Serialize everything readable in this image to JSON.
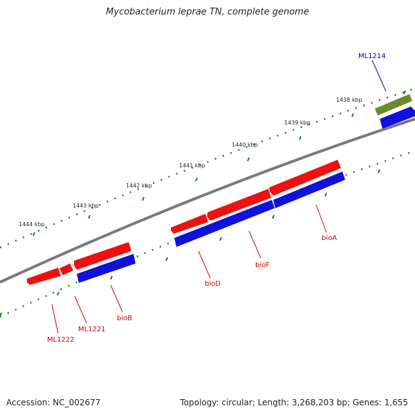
{
  "title": "Mycobacterium leprae TN, complete genome",
  "footer": {
    "accession": "Accession: NC_002677",
    "summary": "Topology: circular; Length: 3,268,203 bp; Genes: 1,655"
  },
  "colors": {
    "backbone": "#7f7f7f",
    "tick": "#1f7f1f",
    "gene_red": "#ee1111",
    "gene_blue": "#1111dd",
    "gene_olive": "#6b8a2a",
    "label_red": "#cc0000",
    "label_blue": "#0000bb"
  },
  "ticks": [
    "1438 kbp",
    "1439 kbp",
    "1440 kbp",
    "1441 kbp",
    "1442 kbp",
    "1443 kbp",
    "1444 kbp"
  ],
  "genes": {
    "ML1214": "ML1214",
    "ML1222": "ML1222",
    "ML1221": "ML1221",
    "bioB": "bioB",
    "bioD": "bioD",
    "bioF": "bioF",
    "bioA": "bioA"
  }
}
